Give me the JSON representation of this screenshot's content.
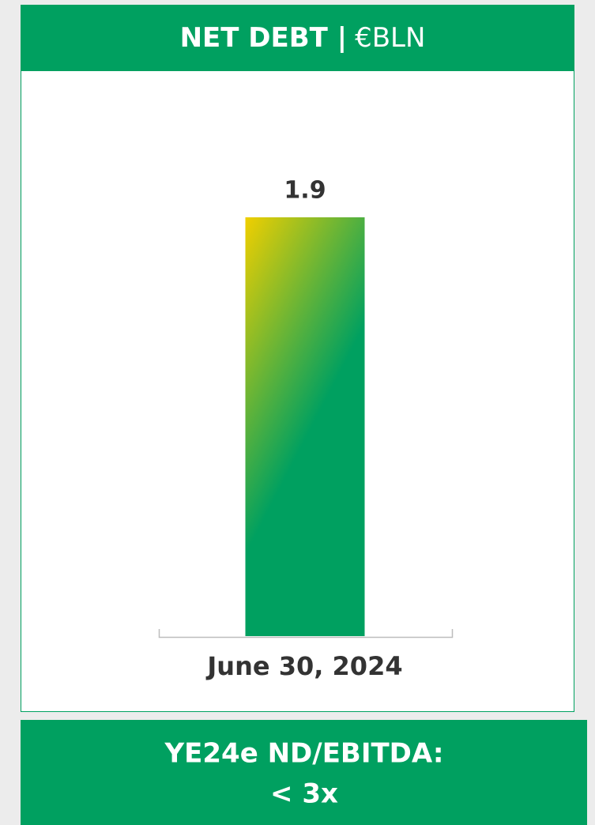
{
  "chart_data": {
    "type": "bar",
    "title": "NET DEBT |",
    "unit": "€BLN",
    "categories": [
      "June 30, 2024"
    ],
    "values": [
      1.9
    ],
    "colors": [
      "#f0cf00",
      "#00a060"
    ],
    "annotations": [
      "YE24e ND/EBITDA:",
      "< 3x"
    ]
  }
}
